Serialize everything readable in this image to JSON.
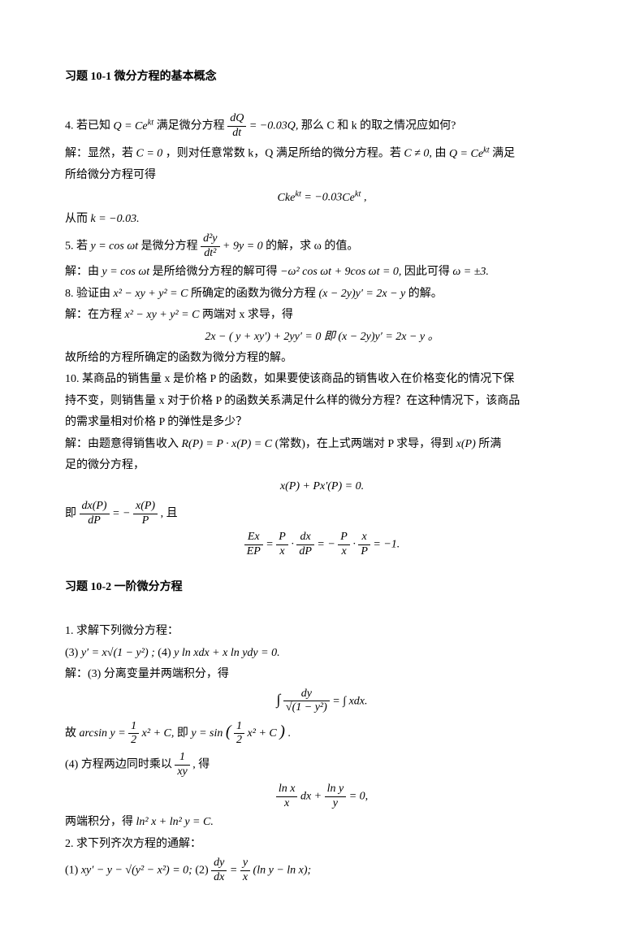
{
  "section1": {
    "title": "习题 10-1  微分方程的基本概念",
    "p4": {
      "q_prefix": "4.  若已知",
      "q_eq1": "Q = Ce",
      "q_eq1_sup": "kt",
      "q_mid1": "满足微分方程",
      "q_frac_num": "dQ",
      "q_frac_den": "dt",
      "q_mid2": " = −0.03Q,",
      "q_tail": "那么 C 和 k 的取之情况应如何?",
      "a1_pre": "解：显然，若",
      "a1_c0": "C = 0",
      "a1_mid": "，则对任意常数 k，Q 满足所给的微分方程。若",
      "a1_cne": "C ≠ 0,",
      "a1_mid2": "由",
      "a1_eq": "Q = Ce",
      "a1_eq_sup": "kt",
      "a1_tail": "满足",
      "a2": "所给微分方程可得",
      "eq_center": "Cke<sup>kt</sup> = −0.03Ce<sup>kt</sup> ,",
      "a3_pre": "从而",
      "a3_eq": "k = −0.03."
    },
    "p5": {
      "q_prefix": "5.  若",
      "q_eq": "y = cos ωt",
      "q_mid": "是微分方程",
      "q_frac_num": "d²y",
      "q_frac_den": "dt²",
      "q_plus": " + 9y = 0",
      "q_tail": "的解，求 ω 的值。",
      "a_pre": "解：由",
      "a_eq1": "y = cos ωt",
      "a_mid1": "是所给微分方程的解可得",
      "a_eq2": "−ω² cos ωt + 9cos ωt = 0,",
      "a_mid2": "因此可得",
      "a_eq3": "ω = ±3."
    },
    "p8": {
      "q_prefix": "8.  验证由",
      "q_eq1": "x² − xy + y² = C",
      "q_mid1": "所确定的函数为微分方程",
      "q_eq2": "(x − 2y)y′ = 2x − y",
      "q_tail": "的解。",
      "a_pre": "解：在方程",
      "a_eq1": "x² − xy + y² = C",
      "a_mid": "两端对 x 求导，得",
      "eq_center": "2x − ( y + xy′) + 2yy′ = 0 即 (x − 2y)y′ = 2x − y 。",
      "a_last": "故所给的方程所确定的函数为微分方程的解。"
    },
    "p10": {
      "q1": "10.  某商品的销售量 x 是价格 P 的函数，如果要使该商品的销售收入在价格变化的情况下保",
      "q2": "持不变，则销售量 x 对于价格 P 的函数关系满足什么样的微分方程？在这种情况下，该商品",
      "q3": "的需求量相对价格 P 的弹性是多少？",
      "a_pre": "解：由题意得销售收入",
      "a_eq1": "R(P) = P · x(P) = C",
      "a_mid1": "(常数)，在上式两端对 P 求导，得到",
      "a_eq2": "x(P)",
      "a_tail": "所满",
      "a2": "足的微分方程，",
      "eq_center1": "x(P) + Px′(P) = 0.",
      "a3_pre": "即",
      "a3_frac1_num": "dx(P)",
      "a3_frac1_den": "dP",
      "a3_mid": " = −",
      "a3_frac2_num": "x(P)",
      "a3_frac2_den": "P",
      "a3_tail": ", 且",
      "eq_center2_lhs_num": "Ex",
      "eq_center2_lhs_den": "EP",
      "eq_center2_mid1": " = ",
      "eq_center2_f1n": "P",
      "eq_center2_f1d": "x",
      "eq_center2_dot": " · ",
      "eq_center2_f2n": "dx",
      "eq_center2_f2d": "dP",
      "eq_center2_mid2": " = −",
      "eq_center2_f3n": "P",
      "eq_center2_f3d": "x",
      "eq_center2_f4n": "x",
      "eq_center2_f4d": "P",
      "eq_center2_tail": " = −1."
    }
  },
  "section2": {
    "title": "习题  10-2  一阶微分方程",
    "p1": {
      "q": "1.   求解下列微分方程：",
      "q3_pre": "(3)  ",
      "q3_eq": "y′ = x√(1 − y²) ;",
      "q4_pre": "     (4)   ",
      "q4_eq": "y ln xdx + x ln ydy = 0.",
      "a3_pre": "解：(3) 分离变量并两端积分，得",
      "eq_c1_int": "∫",
      "eq_c1_num": "dy",
      "eq_c1_den": "√(1 − y²)",
      "eq_c1_rhs": " = ∫ xdx.",
      "a3_b_pre": "故",
      "a3_b_eq1": "arcsin y = ",
      "a3_b_f_num": "1",
      "a3_b_f_den": "2",
      "a3_b_eq2": " x² + C,",
      "a3_b_mid": "即",
      "a3_b_eq3_pre": "y = sin",
      "a3_b_f2_num": "1",
      "a3_b_f2_den": "2",
      "a3_b_eq3_tail": " x² + C",
      "a3_b_dot": ".",
      "a4_pre": "(4) 方程两边同时乘以",
      "a4_f_num": "1",
      "a4_f_den": "xy",
      "a4_mid": ", 得",
      "eq_c2_f1n": "ln x",
      "eq_c2_f1d": "x",
      "eq_c2_mid1": " dx + ",
      "eq_c2_f2n": "ln y",
      "eq_c2_f2d": "y",
      "eq_c2_tail": " = 0,",
      "a4_b_pre": "两端积分，得",
      "a4_b_eq": "ln² x + ln² y = C."
    },
    "p2": {
      "q": "2.   求下列齐次方程的通解：",
      "q1_pre": "(1)  ",
      "q1_eq": "xy′ − y − √(y² − x²) = 0;",
      "q2_pre": "       (2)  ",
      "q2_f_num": "dy",
      "q2_f_den": "dx",
      "q2_mid": " = ",
      "q2_f2_num": "y",
      "q2_f2_den": "x",
      "q2_tail": " (ln y − ln x);"
    }
  }
}
